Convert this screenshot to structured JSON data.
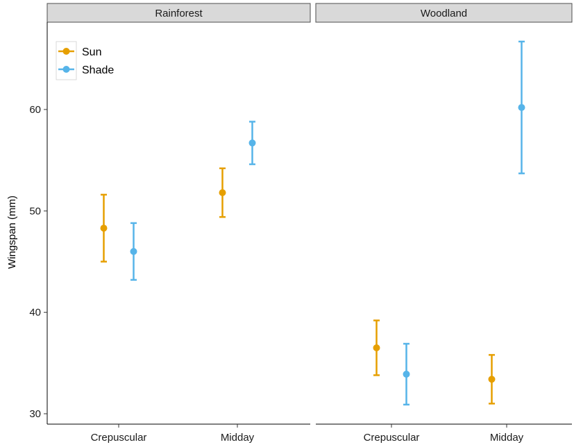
{
  "chart_data": {
    "type": "scatter",
    "subtype": "point-with-errorbars, faceted",
    "ylabel": "Wingspan (mm)",
    "xlabel": "",
    "ylim": [
      29,
      69
    ],
    "yticks": [
      30,
      40,
      50,
      60
    ],
    "grid": false,
    "legend_position": "top-left",
    "categories": [
      "Crepuscular",
      "Midday"
    ],
    "colors": {
      "Sun": "#E69F00",
      "Shade": "#56B4E9"
    },
    "series": [
      {
        "name": "Sun"
      },
      {
        "name": "Shade"
      }
    ],
    "facets": [
      {
        "label": "Rainforest",
        "points": [
          {
            "category": "Crepuscular",
            "series": "Sun",
            "mean": 48.3,
            "lower": 45.0,
            "upper": 51.6
          },
          {
            "category": "Crepuscular",
            "series": "Shade",
            "mean": 46.0,
            "lower": 43.2,
            "upper": 48.8
          },
          {
            "category": "Midday",
            "series": "Sun",
            "mean": 51.8,
            "lower": 49.4,
            "upper": 54.2
          },
          {
            "category": "Midday",
            "series": "Shade",
            "mean": 56.7,
            "lower": 54.6,
            "upper": 58.8
          }
        ]
      },
      {
        "label": "Woodland",
        "points": [
          {
            "category": "Crepuscular",
            "series": "Sun",
            "mean": 36.5,
            "lower": 33.8,
            "upper": 39.2
          },
          {
            "category": "Crepuscular",
            "series": "Shade",
            "mean": 33.9,
            "lower": 30.9,
            "upper": 36.9
          },
          {
            "category": "Midday",
            "series": "Sun",
            "mean": 33.4,
            "lower": 31.0,
            "upper": 35.8
          },
          {
            "category": "Midday",
            "series": "Shade",
            "mean": 60.2,
            "lower": 53.7,
            "upper": 66.7
          }
        ]
      }
    ]
  }
}
